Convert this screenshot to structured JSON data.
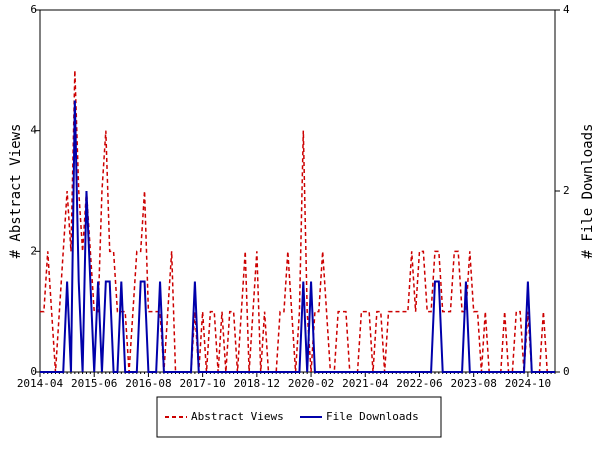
{
  "chart_data": {
    "type": "line",
    "ylabel": "# Abstract Views",
    "y2label": "# File Downloads",
    "categories": [
      "2014-04",
      null,
      null,
      null,
      null,
      null,
      null,
      null,
      null,
      null,
      null,
      null,
      null,
      null,
      "2015-06",
      null,
      null,
      null,
      null,
      null,
      null,
      null,
      null,
      null,
      null,
      null,
      null,
      null,
      "2016-08",
      null,
      null,
      null,
      null,
      null,
      null,
      null,
      null,
      null,
      null,
      null,
      null,
      null,
      "2017-10",
      null,
      null,
      null,
      null,
      null,
      null,
      null,
      null,
      null,
      null,
      null,
      null,
      null,
      "2018-12",
      null,
      null,
      null,
      null,
      null,
      null,
      null,
      null,
      null,
      null,
      null,
      null,
      null,
      "2020-02",
      null,
      null,
      null,
      null,
      null,
      null,
      null,
      null,
      null,
      null,
      null,
      null,
      null,
      "2021-04",
      null,
      null,
      null,
      null,
      null,
      null,
      null,
      null,
      null,
      null,
      null,
      null,
      null,
      "2022-06",
      null,
      null,
      null,
      null,
      null,
      null,
      null,
      null,
      null,
      null,
      null,
      null,
      null,
      "2023-08",
      null,
      null,
      null,
      null,
      null,
      null,
      null,
      null,
      null,
      null,
      null,
      null,
      null,
      "2024-10",
      null,
      null,
      null,
      null,
      null,
      null,
      null
    ],
    "series": [
      {
        "name": "Abstract Views",
        "color": "#cc0000",
        "dashed": true,
        "values": [
          1,
          1,
          2,
          1,
          0,
          1,
          2,
          3,
          2,
          5,
          3,
          2,
          3,
          2,
          1,
          1,
          3,
          4,
          2,
          2,
          1,
          1,
          1,
          0,
          1,
          2,
          2,
          3,
          1,
          1,
          1,
          1,
          0,
          1,
          2,
          0,
          0,
          0,
          0,
          0,
          1,
          0,
          1,
          0,
          1,
          1,
          0,
          1,
          0,
          1,
          1,
          0,
          1,
          2,
          0,
          1,
          2,
          0,
          1,
          0,
          0,
          0,
          1,
          1,
          2,
          1,
          0,
          1,
          4,
          1,
          0,
          1,
          1,
          2,
          1,
          0,
          0,
          1,
          1,
          1,
          0,
          0,
          0,
          1,
          1,
          1,
          0,
          1,
          1,
          0,
          1,
          1,
          1,
          1,
          1,
          1,
          2,
          1,
          2,
          2,
          1,
          1,
          2,
          2,
          1,
          1,
          1,
          2,
          2,
          1,
          1,
          2,
          1,
          1,
          0,
          1,
          0,
          0,
          0,
          0,
          1,
          0,
          0,
          1,
          1,
          0,
          1,
          0,
          0,
          0,
          1,
          0,
          0,
          0
        ]
      },
      {
        "name": "File Downloads",
        "color": "#0000aa",
        "axis": "y2",
        "values": [
          0,
          0,
          0,
          0,
          0,
          0,
          0,
          1,
          0,
          3,
          1,
          0,
          2,
          1,
          0,
          1,
          0,
          1,
          1,
          0,
          0,
          1,
          0,
          0,
          0,
          0,
          1,
          1,
          0,
          0,
          0,
          1,
          0,
          0,
          0,
          0,
          0,
          0,
          0,
          0,
          1,
          0,
          0,
          0,
          0,
          0,
          0,
          0,
          0,
          0,
          0,
          0,
          0,
          0,
          0,
          0,
          0,
          0,
          0,
          0,
          0,
          0,
          0,
          0,
          0,
          0,
          0,
          0,
          1,
          0,
          1,
          0,
          0,
          0,
          0,
          0,
          0,
          0,
          0,
          0,
          0,
          0,
          0,
          0,
          0,
          0,
          0,
          0,
          0,
          0,
          0,
          0,
          0,
          0,
          0,
          0,
          0,
          0,
          0,
          0,
          0,
          0,
          1,
          1,
          0,
          0,
          0,
          0,
          0,
          0,
          1,
          0,
          0,
          0,
          0,
          0,
          0,
          0,
          0,
          0,
          0,
          0,
          0,
          0,
          0,
          0,
          1,
          0,
          0,
          0,
          0,
          0,
          0,
          0
        ]
      }
    ],
    "ylim": [
      0,
      6
    ],
    "yticks": [
      0,
      2,
      4,
      6
    ],
    "y2lim": [
      0,
      4
    ],
    "y2ticks": [
      0,
      2,
      4
    ],
    "legend": "bottom"
  }
}
